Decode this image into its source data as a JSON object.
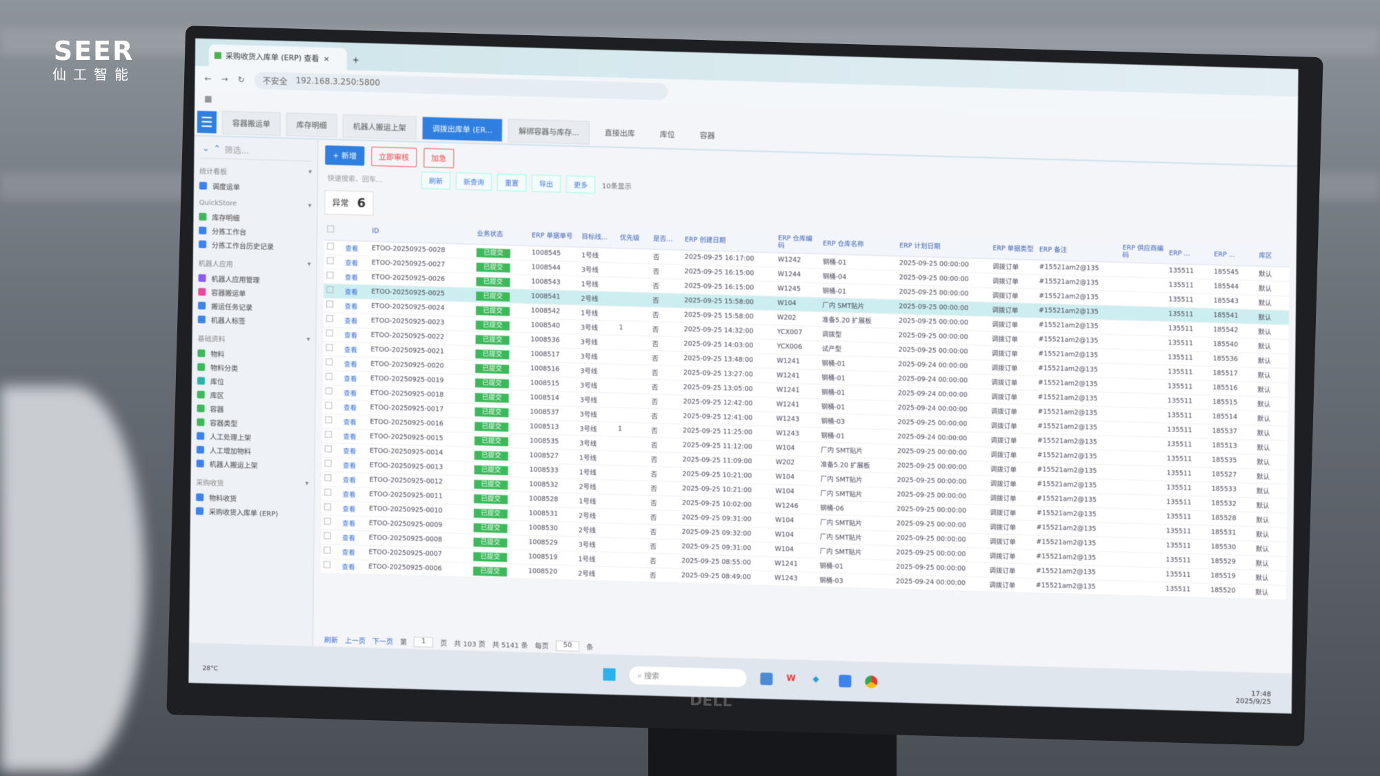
{
  "logo": {
    "brand": "SEER",
    "sub": "仙工智能"
  },
  "browser": {
    "tab_title": "采购收货入库单 (ERP) 查看",
    "security": "不安全",
    "url": "192.168.3.250:5800"
  },
  "app_tabs": [
    {
      "label": "容器搬运单"
    },
    {
      "label": "库存明细"
    },
    {
      "label": "机器人搬运上架"
    },
    {
      "label": "调拨出库单 (ER...",
      "active": true
    },
    {
      "label": "解绑容器与库存..."
    },
    {
      "label": "直接出库"
    },
    {
      "label": "库位"
    },
    {
      "label": "容器"
    }
  ],
  "sidebar": {
    "filter_placeholder": "筛选...",
    "groups": [
      {
        "title": "统计看板",
        "items": [
          {
            "label": "调度运单",
            "color": "#3b82f6"
          }
        ]
      },
      {
        "title": "QuickStore",
        "items": [
          {
            "label": "库存明细",
            "color": "#3cb95a"
          },
          {
            "label": "分拣工作台",
            "color": "#3b82f6"
          },
          {
            "label": "分拣工作台历史记录",
            "color": "#3b82f6"
          }
        ]
      },
      {
        "title": "机器人应用",
        "items": [
          {
            "label": "机器人应用管理",
            "color": "#8b5cf6"
          },
          {
            "label": "容器搬运单",
            "color": "#ec4899"
          },
          {
            "label": "搬运任务记录",
            "color": "#3b82f6"
          },
          {
            "label": "机器人标签",
            "color": "#3b82f6"
          }
        ]
      },
      {
        "title": "基础资料",
        "items": [
          {
            "label": "物料",
            "color": "#3cb95a"
          },
          {
            "label": "物料分类",
            "color": "#3cb95a"
          },
          {
            "label": "库位",
            "color": "#2bb5a8"
          },
          {
            "label": "库区",
            "color": "#3cb95a"
          },
          {
            "label": "容器",
            "color": "#3cb95a"
          },
          {
            "label": "容器类型",
            "color": "#3cb95a"
          },
          {
            "label": "人工处理上架",
            "color": "#3b82f6"
          },
          {
            "label": "人工增加物料",
            "color": "#3b82f6"
          },
          {
            "label": "机器人搬运上架",
            "color": "#3b82f6"
          }
        ]
      },
      {
        "title": "采购收货",
        "items": [
          {
            "label": "物料收货",
            "color": "#3b82f6"
          },
          {
            "label": "采购收货入库单 (ERP)",
            "color": "#3b82f6"
          }
        ]
      }
    ]
  },
  "toolbar": {
    "add": "+ 新增",
    "approve": "立即审核",
    "urgent": "加急",
    "search_placeholder": "快速搜索、回车...",
    "filters": [
      "刷新",
      "新查询",
      "重置",
      "导出",
      "更多"
    ],
    "page_display": "10条显示"
  },
  "summary": {
    "label": "异常",
    "count": "6"
  },
  "table": {
    "headers": [
      "",
      "",
      "ID",
      "业务状态",
      "ERP 单据单号",
      "目标线...",
      "优先级",
      "是否...",
      "ERP 创建日期",
      "ERP 仓库编码",
      "ERP 仓库名称",
      "ERP 计划日期",
      "ERP 单据类型",
      "ERP 备注",
      "ERP 供应商编码",
      "ERP ...",
      "ERP ...",
      "库区"
    ],
    "view_label": "查看",
    "status_label": "已提交",
    "rows": [
      [
        "ETOO-20250925-0028",
        "1008545",
        "1号线",
        "",
        "否",
        "2025-09-25 16:17:00",
        "W1242",
        "钢桶-01",
        "2025-09-25 00:00:00",
        "调拨订单",
        "#15521am2@135",
        "135511",
        "185545",
        "默认"
      ],
      [
        "ETOO-20250925-0027",
        "1008544",
        "3号线",
        "",
        "否",
        "2025-09-25 16:15:00",
        "W1244",
        "钢桶-04",
        "2025-09-25 00:00:00",
        "调拨订单",
        "#15521am2@135",
        "135511",
        "185544",
        "默认"
      ],
      [
        "ETOO-20250925-0026",
        "1008543",
        "1号线",
        "",
        "否",
        "2025-09-25 16:15:00",
        "W1245",
        "钢桶-01",
        "2025-09-25 00:00:00",
        "调拨订单",
        "#15521am2@135",
        "135511",
        "185543",
        "默认"
      ],
      [
        "ETOO-20250925-0025",
        "1008541",
        "2号线",
        "",
        "否",
        "2025-09-25 15:58:00",
        "W104",
        "厂内 SMT贴片",
        "2025-09-25 00:00:00",
        "调拨订单",
        "#15521am2@135",
        "135511",
        "185541",
        "默认"
      ],
      [
        "ETOO-20250925-0024",
        "1008542",
        "1号线",
        "",
        "否",
        "2025-09-25 15:58:00",
        "W202",
        "准备5.20 扩展板",
        "2025-09-25 00:00:00",
        "调拨订单",
        "#15521am2@135",
        "135511",
        "185542",
        "默认"
      ],
      [
        "ETOO-20250925-0023",
        "1008540",
        "3号线",
        "1",
        "否",
        "2025-09-25 14:32:00",
        "YCX007",
        "调拨型",
        "2025-09-25 00:00:00",
        "调拨订单",
        "#15521am2@135",
        "135511",
        "185540",
        "默认"
      ],
      [
        "ETOO-20250925-0022",
        "1008536",
        "3号线",
        "",
        "否",
        "2025-09-25 14:03:00",
        "YCX006",
        "试产型",
        "2025-09-25 00:00:00",
        "调拨订单",
        "#15521am2@135",
        "135511",
        "185536",
        "默认"
      ],
      [
        "ETOO-20250925-0021",
        "1008517",
        "3号线",
        "",
        "否",
        "2025-09-25 13:48:00",
        "W1241",
        "钢桶-01",
        "2025-09-24 00:00:00",
        "调拨订单",
        "#15521am2@135",
        "135511",
        "185517",
        "默认"
      ],
      [
        "ETOO-20250925-0020",
        "1008516",
        "3号线",
        "",
        "否",
        "2025-09-25 13:27:00",
        "W1241",
        "钢桶-01",
        "2025-09-24 00:00:00",
        "调拨订单",
        "#15521am2@135",
        "135511",
        "185516",
        "默认"
      ],
      [
        "ETOO-20250925-0019",
        "1008515",
        "3号线",
        "",
        "否",
        "2025-09-25 13:05:00",
        "W1241",
        "钢桶-01",
        "2025-09-24 00:00:00",
        "调拨订单",
        "#15521am2@135",
        "135511",
        "185515",
        "默认"
      ],
      [
        "ETOO-20250925-0018",
        "1008514",
        "3号线",
        "",
        "否",
        "2025-09-25 12:42:00",
        "W1241",
        "钢桶-01",
        "2025-09-24 00:00:00",
        "调拨订单",
        "#15521am2@135",
        "135511",
        "185514",
        "默认"
      ],
      [
        "ETOO-20250925-0017",
        "1008537",
        "3号线",
        "",
        "否",
        "2025-09-25 12:41:00",
        "W1243",
        "钢桶-03",
        "2025-09-25 00:00:00",
        "调拨订单",
        "#15521am2@135",
        "135511",
        "185537",
        "默认"
      ],
      [
        "ETOO-20250925-0016",
        "1008513",
        "3号线",
        "1",
        "否",
        "2025-09-25 11:25:00",
        "W1243",
        "钢桶-01",
        "2025-09-24 00:00:00",
        "调拨订单",
        "#15521am2@135",
        "135511",
        "185513",
        "默认"
      ],
      [
        "ETOO-20250925-0015",
        "1008535",
        "3号线",
        "",
        "否",
        "2025-09-25 11:12:00",
        "W104",
        "厂内 SMT贴片",
        "2025-09-25 00:00:00",
        "调拨订单",
        "#15521am2@135",
        "135511",
        "185535",
        "默认"
      ],
      [
        "ETOO-20250925-0014",
        "1008527",
        "1号线",
        "",
        "否",
        "2025-09-25 11:09:00",
        "W202",
        "准备5.20 扩展板",
        "2025-09-25 00:00:00",
        "调拨订单",
        "#15521am2@135",
        "135511",
        "185527",
        "默认"
      ],
      [
        "ETOO-20250925-0013",
        "1008533",
        "1号线",
        "",
        "否",
        "2025-09-25 10:21:00",
        "W104",
        "厂内 SMT贴片",
        "2025-09-25 00:00:00",
        "调拨订单",
        "#15521am2@135",
        "135511",
        "185533",
        "默认"
      ],
      [
        "ETOO-20250925-0012",
        "1008532",
        "2号线",
        "",
        "否",
        "2025-09-25 10:21:00",
        "W104",
        "厂内 SMT贴片",
        "2025-09-25 00:00:00",
        "调拨订单",
        "#15521am2@135",
        "135511",
        "185532",
        "默认"
      ],
      [
        "ETOO-20250925-0011",
        "1008528",
        "1号线",
        "",
        "否",
        "2025-09-25 10:02:00",
        "W1246",
        "钢桶-06",
        "2025-09-25 00:00:00",
        "调拨订单",
        "#15521am2@135",
        "135511",
        "185528",
        "默认"
      ],
      [
        "ETOO-20250925-0010",
        "1008531",
        "2号线",
        "",
        "否",
        "2025-09-25 09:31:00",
        "W104",
        "厂内 SMT贴片",
        "2025-09-25 00:00:00",
        "调拨订单",
        "#15521am2@135",
        "135511",
        "185531",
        "默认"
      ],
      [
        "ETOO-20250925-0009",
        "1008530",
        "2号线",
        "",
        "否",
        "2025-09-25 09:32:00",
        "W104",
        "厂内 SMT贴片",
        "2025-09-25 00:00:00",
        "调拨订单",
        "#15521am2@135",
        "135511",
        "185530",
        "默认"
      ],
      [
        "ETOO-20250925-0008",
        "1008529",
        "3号线",
        "",
        "否",
        "2025-09-25 09:31:00",
        "W104",
        "厂内 SMT贴片",
        "2025-09-25 00:00:00",
        "调拨订单",
        "#15521am2@135",
        "135511",
        "185529",
        "默认"
      ],
      [
        "ETOO-20250925-0007",
        "1008519",
        "1号线",
        "",
        "否",
        "2025-09-25 08:55:00",
        "W1241",
        "钢桶-01",
        "2025-09-25 00:00:00",
        "调拨订单",
        "#15521am2@135",
        "135511",
        "185519",
        "默认"
      ],
      [
        "ETOO-20250925-0006",
        "1008520",
        "2号线",
        "",
        "否",
        "2025-09-25 08:49:00",
        "W1243",
        "钢桶-03",
        "2025-09-24 00:00:00",
        "调拨订单",
        "#15521am2@135",
        "135511",
        "185520",
        "默认"
      ]
    ],
    "selected_index": 3
  },
  "pager": {
    "refresh": "刷新",
    "prev": "上一页",
    "next": "下一页",
    "page_prefix": "第",
    "page": "1",
    "page_suffix": "页",
    "total_pages": "共 103 页",
    "total_items": "共 5141 条",
    "per_page_prefix": "每页",
    "per_page": "50",
    "per_page_suffix": "条"
  },
  "taskbar": {
    "search": "搜索",
    "weather": "28°C",
    "time": "17:48",
    "date": "2025/9/25"
  },
  "monitor_brand": "DELL",
  "colors": {
    "accent": "#2f7fe0",
    "status_green": "#3cb95a",
    "selected_row": "#cdeef0"
  }
}
